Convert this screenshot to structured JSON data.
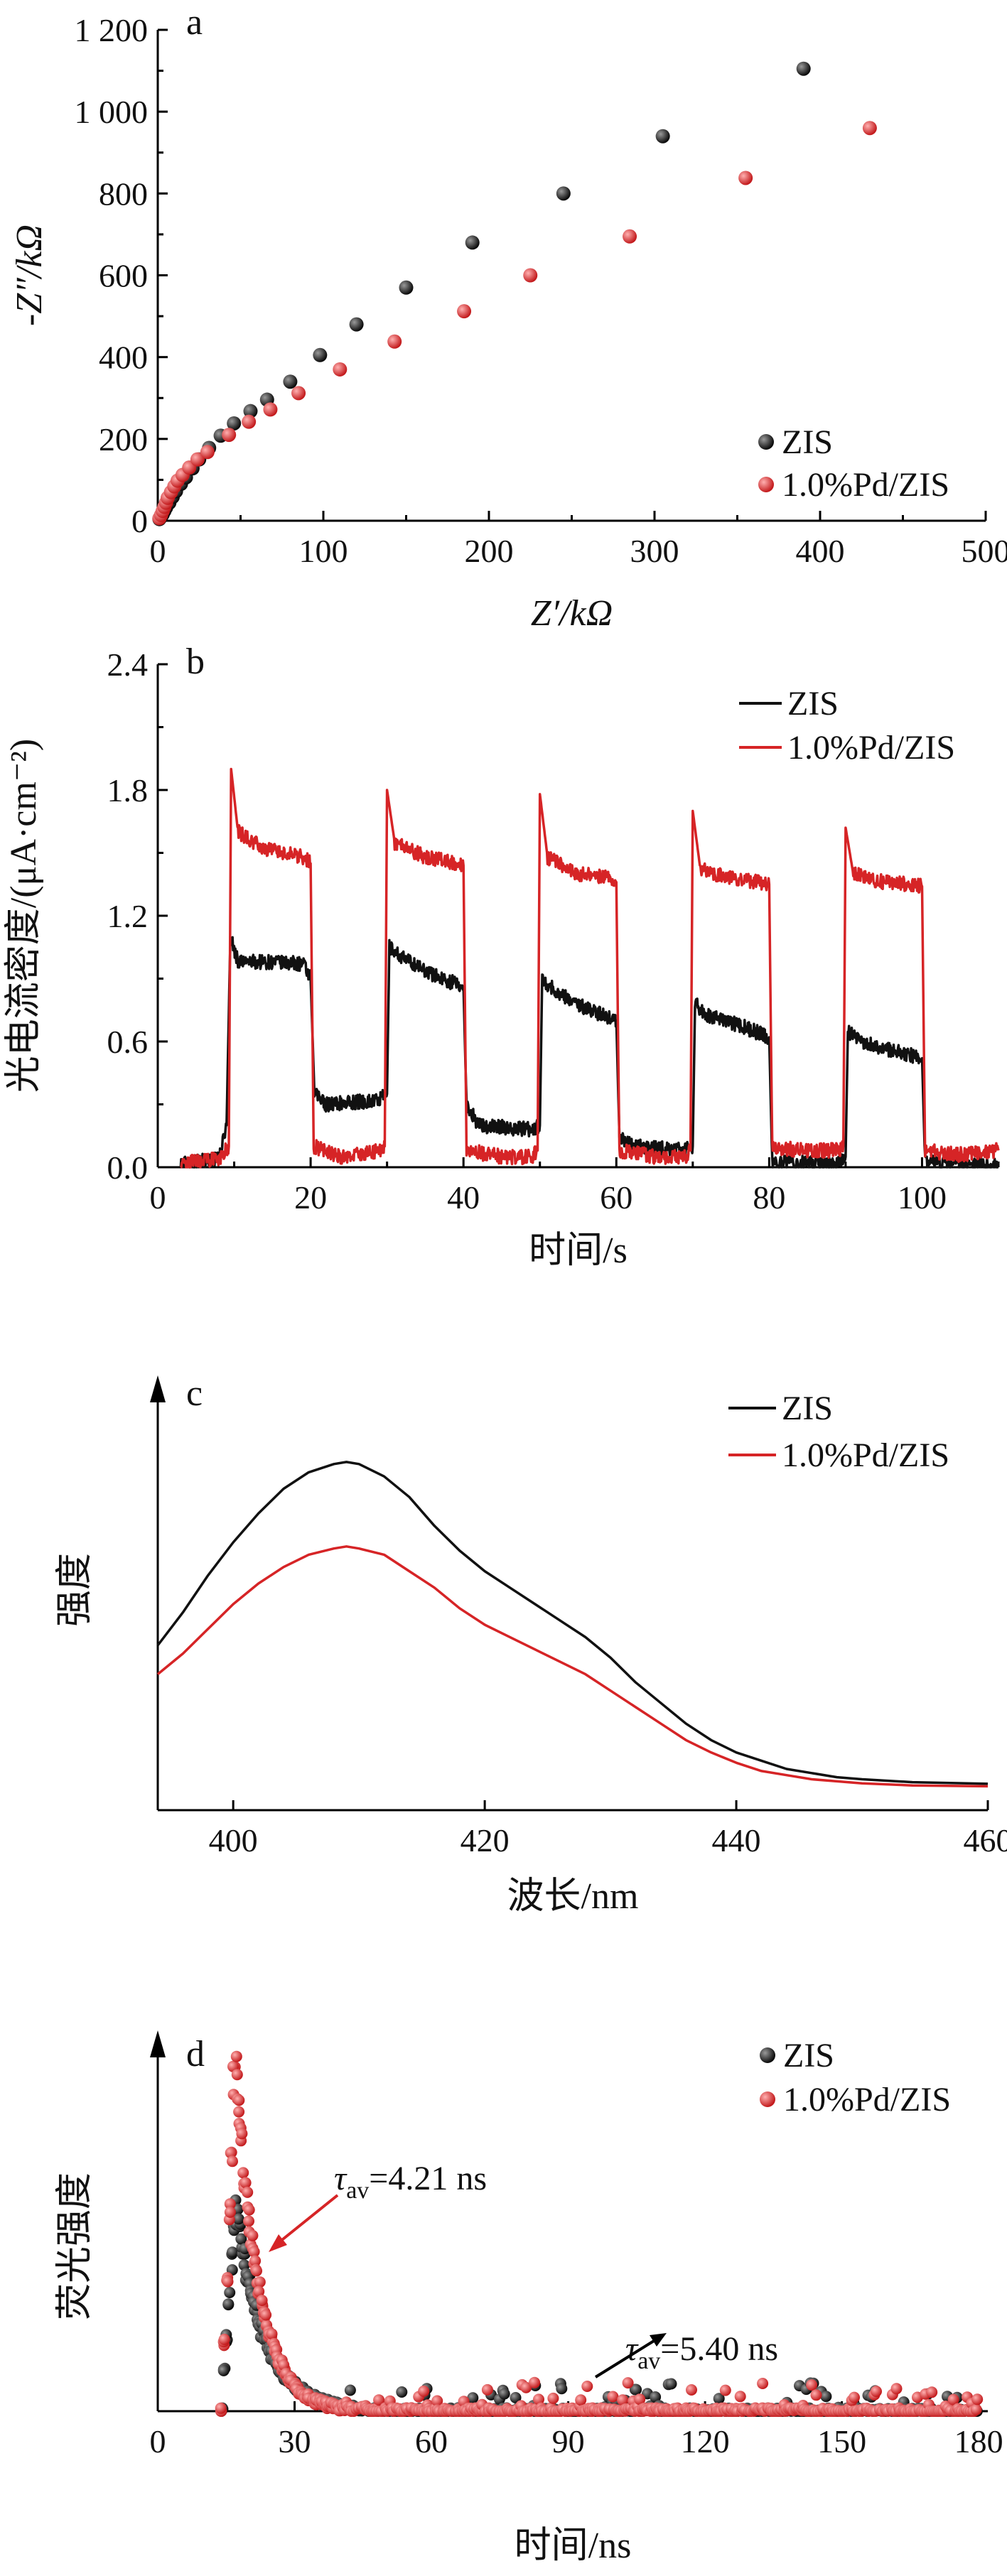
{
  "colors": {
    "zis": "#111111",
    "pd": "#d62426",
    "axis": "#000000"
  },
  "chart_data": [
    {
      "panel": "a",
      "type": "scatter",
      "xlabel": "Z′/kΩ",
      "ylabel": "-Z″/kΩ",
      "xlim": [
        0,
        500
      ],
      "ylim": [
        0,
        1200
      ],
      "xticks": [
        0,
        100,
        200,
        300,
        400,
        500
      ],
      "yticks": [
        0,
        200,
        400,
        600,
        800,
        1000,
        1200
      ],
      "xtick_labels": [
        "0",
        "100",
        "200",
        "300",
        "400",
        "500"
      ],
      "ytick_labels": [
        "0",
        "200",
        "400",
        "600",
        "800",
        "1 000",
        "1 200"
      ],
      "legend_position": "bottom-right",
      "series": [
        {
          "name": "ZIS",
          "color": "#111111",
          "points": [
            [
              1,
              4
            ],
            [
              2,
              9
            ],
            [
              3,
              16
            ],
            [
              4,
              24
            ],
            [
              5,
              32
            ],
            [
              7,
              44
            ],
            [
              9,
              58
            ],
            [
              11,
              72
            ],
            [
              14,
              90
            ],
            [
              17,
              106
            ],
            [
              21,
              128
            ],
            [
              25,
              150
            ],
            [
              31,
              178
            ],
            [
              38,
              208
            ],
            [
              46,
              238
            ],
            [
              56,
              268
            ],
            [
              66,
              296
            ],
            [
              80,
              340
            ],
            [
              98,
              405
            ],
            [
              120,
              480
            ],
            [
              150,
              570
            ],
            [
              190,
              680
            ],
            [
              245,
              800
            ],
            [
              305,
              940
            ],
            [
              390,
              1105
            ]
          ]
        },
        {
          "name": "1.0%Pd/ZIS",
          "color": "#d62426",
          "points": [
            [
              1,
              6
            ],
            [
              2,
              14
            ],
            [
              3,
              24
            ],
            [
              4,
              34
            ],
            [
              5,
              44
            ],
            [
              6,
              56
            ],
            [
              8,
              70
            ],
            [
              10,
              84
            ],
            [
              12,
              98
            ],
            [
              15,
              112
            ],
            [
              19,
              130
            ],
            [
              24,
              150
            ],
            [
              30,
              168
            ],
            [
              43,
              210
            ],
            [
              55,
              242
            ],
            [
              68,
              272
            ],
            [
              85,
              312
            ],
            [
              110,
              370
            ],
            [
              143,
              438
            ],
            [
              185,
              512
            ],
            [
              225,
              600
            ],
            [
              285,
              695
            ],
            [
              355,
              838
            ],
            [
              430,
              960
            ]
          ]
        }
      ]
    },
    {
      "panel": "b",
      "type": "line",
      "xlabel": "时间/s",
      "ylabel": "光电流密度/(μA·cm⁻²)",
      "xlim": [
        0,
        110
      ],
      "ylim": [
        0,
        2.4
      ],
      "xticks": [
        0,
        20,
        40,
        60,
        80,
        100
      ],
      "yticks": [
        0,
        0.6,
        1.2,
        1.8,
        2.4
      ],
      "xtick_labels": [
        "0",
        "20",
        "40",
        "60",
        "80",
        "100"
      ],
      "ytick_labels": [
        "0.0",
        "0.6",
        "1.2",
        "1.8",
        "2.4"
      ],
      "legend_position": "top-right",
      "series": [
        {
          "name": "ZIS",
          "color": "#111111",
          "points": [
            [
              3,
              0.02
            ],
            [
              8,
              0.04
            ],
            [
              9,
              0.2
            ],
            [
              9.5,
              1.1
            ],
            [
              10.5,
              0.98
            ],
            [
              14,
              0.98
            ],
            [
              19,
              0.97
            ],
            [
              20,
              0.9
            ],
            [
              20.5,
              0.35
            ],
            [
              22,
              0.3
            ],
            [
              29,
              0.32
            ],
            [
              30,
              0.35
            ],
            [
              30.3,
              1.05
            ],
            [
              32,
              1.0
            ],
            [
              36,
              0.92
            ],
            [
              40,
              0.86
            ],
            [
              40.4,
              0.3
            ],
            [
              42,
              0.2
            ],
            [
              49,
              0.18
            ],
            [
              50,
              0.2
            ],
            [
              50.3,
              0.9
            ],
            [
              52,
              0.84
            ],
            [
              56,
              0.76
            ],
            [
              60,
              0.7
            ],
            [
              60.4,
              0.15
            ],
            [
              62,
              0.1
            ],
            [
              69,
              0.08
            ],
            [
              70,
              0.1
            ],
            [
              70.3,
              0.78
            ],
            [
              72,
              0.72
            ],
            [
              76,
              0.68
            ],
            [
              80,
              0.62
            ],
            [
              80.4,
              0.02
            ],
            [
              85,
              0.02
            ],
            [
              89,
              0.02
            ],
            [
              90,
              0.05
            ],
            [
              90.3,
              0.65
            ],
            [
              92,
              0.6
            ],
            [
              96,
              0.56
            ],
            [
              100,
              0.52
            ],
            [
              100.4,
              0.02
            ],
            [
              105,
              0.02
            ],
            [
              110,
              0.02
            ]
          ]
        },
        {
          "name": "1.0%Pd/ZIS",
          "color": "#d62426",
          "points": [
            [
              3,
              0.02
            ],
            [
              8,
              0.04
            ],
            [
              9.3,
              0.1
            ],
            [
              9.6,
              1.9
            ],
            [
              10.5,
              1.6
            ],
            [
              14,
              1.52
            ],
            [
              19,
              1.48
            ],
            [
              20,
              1.45
            ],
            [
              20.4,
              0.1
            ],
            [
              24,
              0.05
            ],
            [
              29,
              0.08
            ],
            [
              29.7,
              0.1
            ],
            [
              30,
              1.8
            ],
            [
              31,
              1.55
            ],
            [
              35,
              1.48
            ],
            [
              39,
              1.45
            ],
            [
              40,
              1.44
            ],
            [
              40.4,
              0.08
            ],
            [
              45,
              0.05
            ],
            [
              49,
              0.05
            ],
            [
              49.7,
              0.08
            ],
            [
              50,
              1.78
            ],
            [
              51,
              1.48
            ],
            [
              55,
              1.4
            ],
            [
              59,
              1.38
            ],
            [
              60,
              1.36
            ],
            [
              60.4,
              0.08
            ],
            [
              65,
              0.05
            ],
            [
              69,
              0.05
            ],
            [
              69.7,
              0.08
            ],
            [
              70,
              1.7
            ],
            [
              71,
              1.42
            ],
            [
              75,
              1.38
            ],
            [
              79,
              1.36
            ],
            [
              80,
              1.35
            ],
            [
              80.4,
              0.1
            ],
            [
              84,
              0.08
            ],
            [
              89,
              0.08
            ],
            [
              89.7,
              0.1
            ],
            [
              90,
              1.62
            ],
            [
              91,
              1.4
            ],
            [
              95,
              1.36
            ],
            [
              99,
              1.35
            ],
            [
              100,
              1.34
            ],
            [
              100.4,
              0.08
            ],
            [
              105,
              0.06
            ],
            [
              110,
              0.08
            ]
          ]
        }
      ]
    },
    {
      "panel": "c",
      "type": "line",
      "xlabel": "波长/nm",
      "ylabel": "强度",
      "xlim": [
        394,
        460
      ],
      "ylim": [
        0,
        1
      ],
      "xticks": [
        400,
        420,
        440,
        460
      ],
      "yticks": [],
      "xtick_labels": [
        "400",
        "420",
        "440",
        "460"
      ],
      "ytick_labels": [],
      "legend_position": "top-right",
      "series": [
        {
          "name": "ZIS",
          "color": "#111111",
          "points": [
            [
              394,
              0.4
            ],
            [
              396,
              0.48
            ],
            [
              398,
              0.57
            ],
            [
              400,
              0.65
            ],
            [
              402,
              0.72
            ],
            [
              404,
              0.78
            ],
            [
              406,
              0.82
            ],
            [
              408,
              0.84
            ],
            [
              409,
              0.845
            ],
            [
              410,
              0.84
            ],
            [
              412,
              0.81
            ],
            [
              414,
              0.76
            ],
            [
              416,
              0.69
            ],
            [
              418,
              0.63
            ],
            [
              420,
              0.58
            ],
            [
              422,
              0.54
            ],
            [
              424,
              0.5
            ],
            [
              426,
              0.46
            ],
            [
              428,
              0.42
            ],
            [
              430,
              0.37
            ],
            [
              432,
              0.31
            ],
            [
              434,
              0.26
            ],
            [
              436,
              0.21
            ],
            [
              438,
              0.17
            ],
            [
              440,
              0.14
            ],
            [
              442,
              0.12
            ],
            [
              444,
              0.1
            ],
            [
              446,
              0.09
            ],
            [
              448,
              0.08
            ],
            [
              450,
              0.075
            ],
            [
              454,
              0.068
            ],
            [
              460,
              0.064
            ]
          ]
        },
        {
          "name": "1.0%Pd/ZIS",
          "color": "#d62426",
          "points": [
            [
              394,
              0.33
            ],
            [
              396,
              0.38
            ],
            [
              398,
              0.44
            ],
            [
              400,
              0.5
            ],
            [
              402,
              0.55
            ],
            [
              404,
              0.59
            ],
            [
              406,
              0.62
            ],
            [
              408,
              0.635
            ],
            [
              409,
              0.64
            ],
            [
              410,
              0.635
            ],
            [
              412,
              0.62
            ],
            [
              414,
              0.58
            ],
            [
              416,
              0.54
            ],
            [
              418,
              0.49
            ],
            [
              420,
              0.45
            ],
            [
              422,
              0.42
            ],
            [
              424,
              0.39
            ],
            [
              426,
              0.36
            ],
            [
              428,
              0.33
            ],
            [
              430,
              0.29
            ],
            [
              432,
              0.25
            ],
            [
              434,
              0.21
            ],
            [
              436,
              0.17
            ],
            [
              438,
              0.14
            ],
            [
              440,
              0.115
            ],
            [
              442,
              0.095
            ],
            [
              444,
              0.085
            ],
            [
              446,
              0.075
            ],
            [
              448,
              0.07
            ],
            [
              450,
              0.065
            ],
            [
              454,
              0.06
            ],
            [
              460,
              0.058
            ]
          ]
        }
      ]
    },
    {
      "panel": "d",
      "type": "scatter",
      "xlabel": "时间/ns",
      "ylabel": "荧光强度",
      "xlim": [
        0,
        182
      ],
      "ylim": [
        0,
        1
      ],
      "xticks": [
        0,
        30,
        60,
        90,
        120,
        150,
        180
      ],
      "yticks": [],
      "xtick_labels": [
        "0",
        "30",
        "60",
        "90",
        "120",
        "150",
        "180"
      ],
      "ytick_labels": [],
      "legend_position": "top-right",
      "series": [
        {
          "name": "ZIS",
          "color": "#111111",
          "tau_av": "5.40 ns"
        },
        {
          "name": "1.0%Pd/ZIS",
          "color": "#d62426",
          "tau_av": "4.21 ns"
        }
      ],
      "annotations": [
        {
          "symbol": "τ",
          "subscript": "av",
          "value": "=4.21 ns"
        },
        {
          "symbol": "τ",
          "subscript": "av",
          "value": "=5.40 ns"
        }
      ]
    }
  ]
}
